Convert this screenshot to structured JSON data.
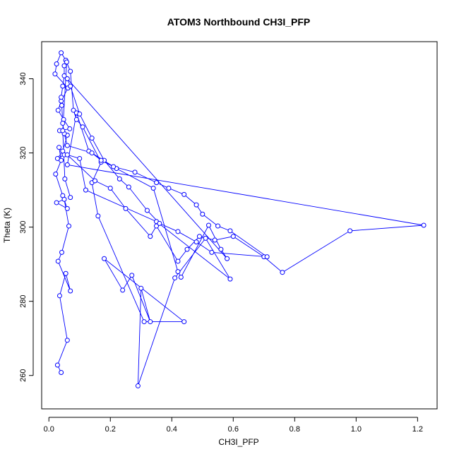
{
  "chart_data": {
    "type": "line",
    "title": "ATOM3 Northbound CH3I_PFP",
    "xlabel": "CH3I_PFP",
    "ylabel": "Theta (K)",
    "xlim": [
      -0.0235,
      1.2635
    ],
    "ylim": [
      251.0,
      350.0
    ],
    "xticks": [
      0.0,
      0.2,
      0.4,
      0.6,
      0.8,
      1.0,
      1.2
    ],
    "xtick_labels": [
      "0.0",
      "0.2",
      "0.4",
      "0.6",
      "0.8",
      "1.0",
      "1.2"
    ],
    "yticks": [
      260,
      280,
      300,
      320,
      340
    ],
    "ytick_labels": [
      "260",
      "280",
      "300",
      "320",
      "340"
    ],
    "grid": false,
    "series_color": "#0000FF",
    "marker": "open-circle",
    "series": [
      {
        "x": [
          0.04,
          0.028,
          0.06,
          0.035,
          0.055,
          0.07,
          0.03,
          0.042,
          0.065,
          0.05,
          0.025,
          0.06,
          0.045,
          0.022,
          0.04,
          0.033,
          0.05,
          0.028,
          0.045,
          0.06,
          0.035,
          0.068,
          0.048,
          0.03,
          0.04,
          0.062,
          0.02,
          0.025,
          0.04,
          0.055,
          0.07,
          0.08,
          0.09,
          0.11,
          0.17,
          0.14,
          0.16,
          0.31,
          0.44,
          0.18,
          0.24,
          0.27,
          0.33,
          0.3,
          0.29,
          0.41,
          0.51,
          0.59,
          0.35,
          0.12,
          0.1,
          0.06,
          0.15,
          0.2,
          0.25,
          0.33,
          0.35,
          0.42,
          0.45,
          0.49,
          0.54,
          0.6,
          0.7,
          0.76,
          0.98,
          1.22,
          0.06,
          0.09,
          0.13,
          0.22,
          0.34,
          0.42,
          0.43,
          0.52,
          0.56,
          0.58,
          0.06,
          0.07,
          0.1,
          0.14,
          0.18,
          0.23,
          0.26,
          0.32,
          0.36,
          0.42,
          0.48,
          0.53,
          0.71,
          0.59,
          0.55,
          0.5,
          0.48,
          0.44,
          0.39,
          0.35,
          0.28,
          0.21,
          0.17,
          0.14,
          0.06,
          0.05,
          0.045,
          0.042,
          0.04,
          0.045,
          0.05,
          0.05,
          0.058,
          0.045,
          0.052,
          0.07
        ],
        "y": [
          260.8,
          262.8,
          269.5,
          281.5,
          287.5,
          282.8,
          290.8,
          293.2,
          300.3,
          307.5,
          306.6,
          305.0,
          308.5,
          314.3,
          318.0,
          321.5,
          319.5,
          318.5,
          320.5,
          324.8,
          326.0,
          326.5,
          329.0,
          331.5,
          334.0,
          337.5,
          341.3,
          344.0,
          347.0,
          345.0,
          342.0,
          331.5,
          329.0,
          327.0,
          317.5,
          312.0,
          303.0,
          274.5,
          274.5,
          291.5,
          283.0,
          287.0,
          274.5,
          283.5,
          257.2,
          286.3,
          297.0,
          286.0,
          301.5,
          310.0,
          318.5,
          319.5,
          312.5,
          310.5,
          305.0,
          297.5,
          300.3,
          290.8,
          294.0,
          297.5,
          296.5,
          297.5,
          292.0,
          287.8,
          299.0,
          300.5,
          316.8,
          330.8,
          320.5,
          315.8,
          310.5,
          288.0,
          286.5,
          300.5,
          294.0,
          291.5,
          340.0,
          338.0,
          330.5,
          324.0,
          318.0,
          313.0,
          310.8,
          304.5,
          301.0,
          298.8,
          296.0,
          293.2,
          292.0,
          299.0,
          300.3,
          303.5,
          306.0,
          308.8,
          310.5,
          312.0,
          314.8,
          316.3,
          318.0,
          320.0,
          322.0,
          325.2,
          328.0,
          332.8,
          335.0,
          338.0,
          340.8,
          343.5,
          344.5,
          326.0,
          313.0,
          308.0
        ]
      }
    ]
  }
}
